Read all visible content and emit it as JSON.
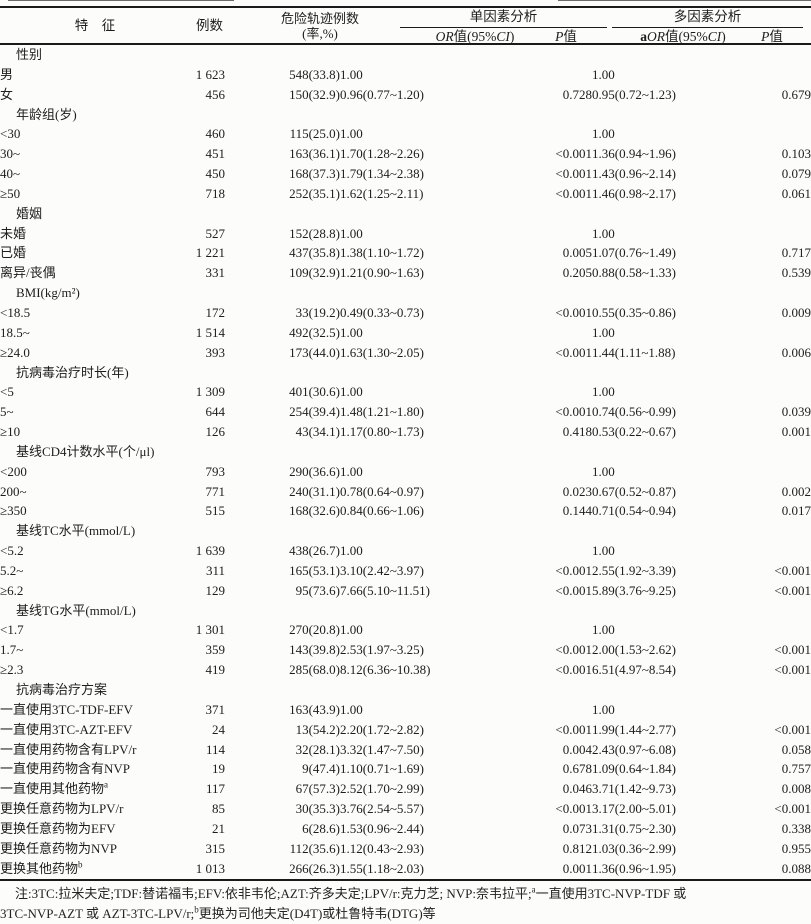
{
  "header": {
    "feature": "特　征",
    "n": "例数",
    "cases_line1": "危险轨迹例数",
    "cases_line2": "(率,%)",
    "uni_group": "单因素分析",
    "multi_group": "多因素分析",
    "uni_or": {
      "or": "OR",
      "mid": "值(95%",
      "ci": "CI",
      "close": ")"
    },
    "uni_p": {
      "p": "P",
      "zhi": "值"
    },
    "multi_aor": {
      "a": "a",
      "or": "OR",
      "mid": "值(95%",
      "ci": "CI",
      "close": ")"
    },
    "multi_p": {
      "p": "P",
      "zhi": "值"
    }
  },
  "table": {
    "rows": [
      {
        "type": "group",
        "label": "性别",
        "n": "",
        "cases": "",
        "or": "",
        "p": "",
        "aor": "",
        "ap": ""
      },
      {
        "type": "item",
        "label": "男",
        "n": "1 623",
        "cases": "548(33.8)",
        "or": "1.00",
        "p": "",
        "aor": "1.00",
        "ap": ""
      },
      {
        "type": "item",
        "label": "女",
        "n": "456",
        "cases": "150(32.9)",
        "or": "0.96(0.77~1.20)",
        "p": "0.728",
        "aor": "0.95(0.72~1.23)",
        "ap": "0.679"
      },
      {
        "type": "group",
        "label": "年龄组(岁)",
        "n": "",
        "cases": "",
        "or": "",
        "p": "",
        "aor": "",
        "ap": ""
      },
      {
        "type": "item",
        "label": "<30",
        "n": "460",
        "cases": "115(25.0)",
        "or": "1.00",
        "p": "",
        "aor": "1.00",
        "ap": ""
      },
      {
        "type": "item",
        "label": "30~",
        "n": "451",
        "cases": "163(36.1)",
        "or": "1.70(1.28~2.26)",
        "p": "<0.001",
        "aor": "1.36(0.94~1.96)",
        "ap": "0.103"
      },
      {
        "type": "item",
        "label": "40~",
        "n": "450",
        "cases": "168(37.3)",
        "or": "1.79(1.34~2.38)",
        "p": "<0.001",
        "aor": "1.43(0.96~2.14)",
        "ap": "0.079"
      },
      {
        "type": "item",
        "label": "≥50",
        "n": "718",
        "cases": "252(35.1)",
        "or": "1.62(1.25~2.11)",
        "p": "<0.001",
        "aor": "1.46(0.98~2.17)",
        "ap": "0.061"
      },
      {
        "type": "group",
        "label": "婚姻",
        "n": "",
        "cases": "",
        "or": "",
        "p": "",
        "aor": "",
        "ap": ""
      },
      {
        "type": "item",
        "label": "未婚",
        "n": "527",
        "cases": "152(28.8)",
        "or": "1.00",
        "p": "",
        "aor": "1.00",
        "ap": ""
      },
      {
        "type": "item",
        "label": "已婚",
        "n": "1 221",
        "cases": "437(35.8)",
        "or": "1.38(1.10~1.72)",
        "p": "0.005",
        "aor": "1.07(0.76~1.49)",
        "ap": "0.717"
      },
      {
        "type": "item",
        "label": "离异/丧偶",
        "n": "331",
        "cases": "109(32.9)",
        "or": "1.21(0.90~1.63)",
        "p": "0.205",
        "aor": "0.88(0.58~1.33)",
        "ap": "0.539"
      },
      {
        "type": "group",
        "label": "BMI(kg/m²)",
        "n": "",
        "cases": "",
        "or": "",
        "p": "",
        "aor": "",
        "ap": ""
      },
      {
        "type": "item",
        "label": "<18.5",
        "n": "172",
        "cases": "33(19.2)",
        "or": "0.49(0.33~0.73)",
        "p": "<0.001",
        "aor": "0.55(0.35~0.86)",
        "ap": "0.009"
      },
      {
        "type": "item",
        "label": "18.5~",
        "n": "1 514",
        "cases": "492(32.5)",
        "or": "1.00",
        "p": "",
        "aor": "1.00",
        "ap": ""
      },
      {
        "type": "item",
        "label": "≥24.0",
        "n": "393",
        "cases": "173(44.0)",
        "or": "1.63(1.30~2.05)",
        "p": "<0.001",
        "aor": "1.44(1.11~1.88)",
        "ap": "0.006"
      },
      {
        "type": "group",
        "label": "抗病毒治疗时长(年)",
        "n": "",
        "cases": "",
        "or": "",
        "p": "",
        "aor": "",
        "ap": ""
      },
      {
        "type": "item",
        "label": "<5",
        "n": "1 309",
        "cases": "401(30.6)",
        "or": "1.00",
        "p": "",
        "aor": "1.00",
        "ap": ""
      },
      {
        "type": "item",
        "label": "5~",
        "n": "644",
        "cases": "254(39.4)",
        "or": "1.48(1.21~1.80)",
        "p": "<0.001",
        "aor": "0.74(0.56~0.99)",
        "ap": "0.039"
      },
      {
        "type": "item",
        "label": "≥10",
        "n": "126",
        "cases": "43(34.1)",
        "or": "1.17(0.80~1.73)",
        "p": "0.418",
        "aor": "0.53(0.22~0.67)",
        "ap": "0.001"
      },
      {
        "type": "group",
        "label": "基线CD4计数水平(个/μl)",
        "n": "",
        "cases": "",
        "or": "",
        "p": "",
        "aor": "",
        "ap": ""
      },
      {
        "type": "item",
        "label": "<200",
        "n": "793",
        "cases": "290(36.6)",
        "or": "1.00",
        "p": "",
        "aor": "1.00",
        "ap": ""
      },
      {
        "type": "item",
        "label": "200~",
        "n": "771",
        "cases": "240(31.1)",
        "or": "0.78(0.64~0.97)",
        "p": "0.023",
        "aor": "0.67(0.52~0.87)",
        "ap": "0.002"
      },
      {
        "type": "item",
        "label": "≥350",
        "n": "515",
        "cases": "168(32.6)",
        "or": "0.84(0.66~1.06)",
        "p": "0.144",
        "aor": "0.71(0.54~0.94)",
        "ap": "0.017"
      },
      {
        "type": "group",
        "label": "基线TC水平(mmol/L)",
        "n": "",
        "cases": "",
        "or": "",
        "p": "",
        "aor": "",
        "ap": ""
      },
      {
        "type": "item",
        "label": "<5.2",
        "n": "1 639",
        "cases": "438(26.7)",
        "or": "1.00",
        "p": "",
        "aor": "1.00",
        "ap": ""
      },
      {
        "type": "item",
        "label": "5.2~",
        "n": "311",
        "cases": "165(53.1)",
        "or": "3.10(2.42~3.97)",
        "p": "<0.001",
        "aor": "2.55(1.92~3.39)",
        "ap": "<0.001"
      },
      {
        "type": "item",
        "label": "≥6.2",
        "n": "129",
        "cases": "95(73.6)",
        "or": "7.66(5.10~11.51)",
        "p": "<0.001",
        "aor": "5.89(3.76~9.25)",
        "ap": "<0.001"
      },
      {
        "type": "group",
        "label": "基线TG水平(mmol/L)",
        "n": "",
        "cases": "",
        "or": "",
        "p": "",
        "aor": "",
        "ap": ""
      },
      {
        "type": "item",
        "label": "<1.7",
        "n": "1 301",
        "cases": "270(20.8)",
        "or": "1.00",
        "p": "",
        "aor": "1.00",
        "ap": ""
      },
      {
        "type": "item",
        "label": "1.7~",
        "n": "359",
        "cases": "143(39.8)",
        "or": "2.53(1.97~3.25)",
        "p": "<0.001",
        "aor": "2.00(1.53~2.62)",
        "ap": "<0.001"
      },
      {
        "type": "item",
        "label": "≥2.3",
        "n": "419",
        "cases": "285(68.0)",
        "or": "8.12(6.36~10.38)",
        "p": "<0.001",
        "aor": "6.51(4.97~8.54)",
        "ap": "<0.001"
      },
      {
        "type": "group",
        "label": "抗病毒治疗方案",
        "n": "",
        "cases": "",
        "or": "",
        "p": "",
        "aor": "",
        "ap": ""
      },
      {
        "type": "item",
        "label": "一直使用3TC-TDF-EFV",
        "n": "371",
        "cases": "163(43.9)",
        "or": "1.00",
        "p": "",
        "aor": "1.00",
        "ap": ""
      },
      {
        "type": "item",
        "label": "一直使用3TC-AZT-EFV",
        "n": "24",
        "cases": "13(54.2)",
        "or": "2.20(1.72~2.82)",
        "p": "<0.001",
        "aor": "1.99(1.44~2.77)",
        "ap": "<0.001"
      },
      {
        "type": "item",
        "label": "一直使用药物含有LPV/r",
        "n": "114",
        "cases": "32(28.1)",
        "or": "3.32(1.47~7.50)",
        "p": "0.004",
        "aor": "2.43(0.97~6.08)",
        "ap": "0.058"
      },
      {
        "type": "item",
        "label": "一直使用药物含有NVP",
        "n": "19",
        "cases": "9(47.4)",
        "or": "1.10(0.71~1.69)",
        "p": "0.678",
        "aor": "1.09(0.64~1.84)",
        "ap": "0.757"
      },
      {
        "type": "item",
        "label": "一直使用其他药物",
        "sup": "a",
        "n": "117",
        "cases": "67(57.3)",
        "or": "2.52(1.70~2.99)",
        "p": "0.046",
        "aor": "3.71(1.42~9.73)",
        "ap": "0.008"
      },
      {
        "type": "item",
        "label": "更换任意药物为LPV/r",
        "n": "85",
        "cases": "30(35.3)",
        "or": "3.76(2.54~5.57)",
        "p": "<0.001",
        "aor": "3.17(2.00~5.01)",
        "ap": "<0.001"
      },
      {
        "type": "item",
        "label": "更换任意药物为EFV",
        "n": "21",
        "cases": "6(28.6)",
        "or": "1.53(0.96~2.44)",
        "p": "0.073",
        "aor": "1.31(0.75~2.30)",
        "ap": "0.338"
      },
      {
        "type": "item",
        "label": "更换任意药物为NVP",
        "n": "315",
        "cases": "112(35.6)",
        "or": "1.12(0.43~2.93)",
        "p": "0.812",
        "aor": "1.03(0.36~2.99)",
        "ap": "0.955"
      },
      {
        "type": "item",
        "label": "更换其他药物",
        "sup": "b",
        "n": "1 013",
        "cases": "266(26.3)",
        "or": "1.55(1.18~2.03)",
        "p": "0.001",
        "aor": "1.36(0.96~1.95)",
        "ap": "0.088"
      }
    ]
  },
  "note": {
    "line1_parts": [
      {
        "t": "注:3TC:拉米夫定;TDF:替诺福韦;EFV:依非韦伦;AZT:齐多夫定;LPV/r:克力芝; NVP:奈韦拉平;"
      },
      {
        "t": "a",
        "sup": true
      },
      {
        "t": "一直使用3TC-NVP-TDF 或"
      }
    ],
    "line2_parts": [
      {
        "t": "3TC-NVP-AZT 或 AZT-3TC-LPV/r;"
      },
      {
        "t": "b",
        "sup": true
      },
      {
        "t": "更换为司他夫定(D4T)或杜鲁特韦(DTG)等"
      }
    ]
  }
}
